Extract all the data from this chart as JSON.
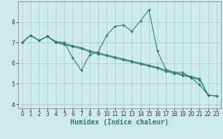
{
  "xlabel": "Humidex (Indice chaleur)",
  "ylabel": "",
  "background_color": "#ceeaea",
  "line_color": "#2e7d70",
  "grid_color": "#aacece",
  "series": [
    {
      "x": [
        0,
        1,
        2,
        3,
        4,
        5,
        6,
        7,
        8,
        9,
        10,
        11,
        12,
        13,
        14,
        15,
        16,
        17,
        18,
        19,
        20,
        21,
        22,
        23
      ],
      "y": [
        7.0,
        7.35,
        7.1,
        7.3,
        7.05,
        7.0,
        6.25,
        5.65,
        6.4,
        6.55,
        7.35,
        7.8,
        7.85,
        7.55,
        8.05,
        8.6,
        6.6,
        5.7,
        5.55,
        5.55,
        5.3,
        4.95,
        4.45,
        4.4
      ]
    },
    {
      "x": [
        0,
        1,
        2,
        3,
        4,
        5,
        6,
        7,
        8,
        9,
        10,
        11,
        12,
        13,
        14,
        15,
        16,
        17,
        18,
        19,
        20,
        21,
        22,
        23
      ],
      "y": [
        7.0,
        7.35,
        7.1,
        7.3,
        7.0,
        6.95,
        6.85,
        6.75,
        6.6,
        6.5,
        6.4,
        6.3,
        6.2,
        6.1,
        6.0,
        5.9,
        5.8,
        5.65,
        5.55,
        5.45,
        5.35,
        5.25,
        4.45,
        4.4
      ]
    },
    {
      "x": [
        0,
        1,
        2,
        3,
        4,
        5,
        6,
        7,
        8,
        9,
        10,
        11,
        12,
        13,
        14,
        15,
        16,
        17,
        18,
        19,
        20,
        21,
        22,
        23
      ],
      "y": [
        7.0,
        7.35,
        7.1,
        7.3,
        7.0,
        6.9,
        6.8,
        6.7,
        6.55,
        6.45,
        6.35,
        6.25,
        6.15,
        6.05,
        5.95,
        5.85,
        5.75,
        5.6,
        5.5,
        5.4,
        5.3,
        5.2,
        4.45,
        4.4
      ]
    }
  ],
  "ylim": [
    3.8,
    9.0
  ],
  "xlim": [
    -0.5,
    23.5
  ],
  "yticks": [
    4,
    5,
    6,
    7,
    8
  ],
  "xticks": [
    0,
    1,
    2,
    3,
    4,
    5,
    6,
    7,
    8,
    9,
    10,
    11,
    12,
    13,
    14,
    15,
    16,
    17,
    18,
    19,
    20,
    21,
    22,
    23
  ],
  "marker": "D",
  "markersize": 1.8,
  "linewidth": 0.8,
  "tick_fontsize": 5.5,
  "xlabel_fontsize": 7.0,
  "spine_color": "#888888"
}
